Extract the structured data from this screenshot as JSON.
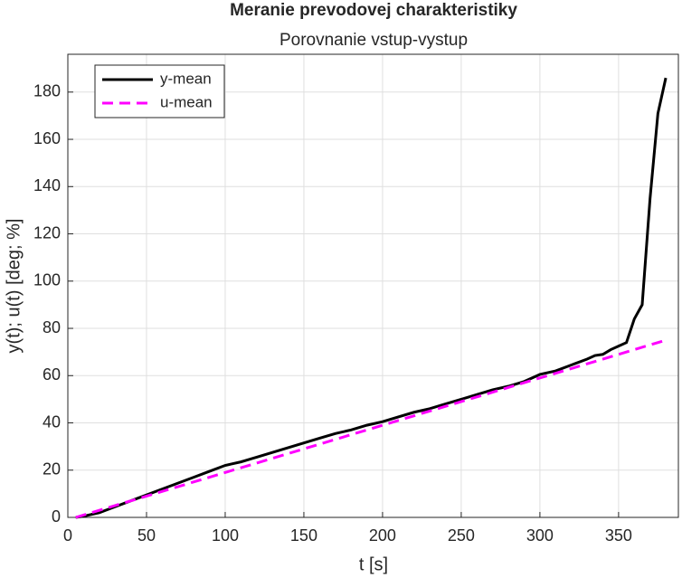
{
  "chart_data": {
    "type": "line",
    "title": "Meranie prevodovej charakteristiky",
    "subtitle": "Porovnanie vstup-vystup",
    "x_label": "t [s]",
    "y_label": "y(t); u(t) [deg; %]",
    "xlim": [
      0,
      388
    ],
    "ylim": [
      0,
      196
    ],
    "xticks": [
      0,
      50,
      100,
      150,
      200,
      250,
      300,
      350
    ],
    "yticks": [
      0,
      20,
      40,
      60,
      80,
      100,
      120,
      140,
      160,
      180
    ],
    "grid": true,
    "legend": "top-left",
    "series": [
      {
        "name": "y-mean",
        "color": "#000000",
        "dash": false,
        "x": [
          5,
          10,
          20,
          30,
          40,
          50,
          60,
          70,
          80,
          90,
          100,
          110,
          120,
          130,
          140,
          150,
          160,
          170,
          180,
          190,
          200,
          210,
          220,
          230,
          240,
          250,
          260,
          270,
          280,
          290,
          300,
          310,
          320,
          330,
          335,
          340,
          345,
          350,
          355,
          360,
          365,
          370,
          375,
          380
        ],
        "values": [
          0,
          0.5,
          2,
          4.5,
          7,
          9.5,
          12,
          14.5,
          17,
          19.5,
          22,
          23.5,
          25.5,
          27.5,
          29.5,
          31.5,
          33.5,
          35.5,
          37,
          39,
          40.5,
          42.5,
          44.5,
          46,
          48,
          50,
          52,
          54,
          55.5,
          57.5,
          60.5,
          62,
          64.5,
          67,
          68.5,
          69,
          71,
          72.5,
          74,
          84,
          90,
          135,
          171,
          186
        ]
      },
      {
        "name": "u-mean",
        "color": "#ff00ff",
        "dash": true,
        "x": [
          5,
          380
        ],
        "values": [
          0,
          75
        ]
      }
    ]
  }
}
